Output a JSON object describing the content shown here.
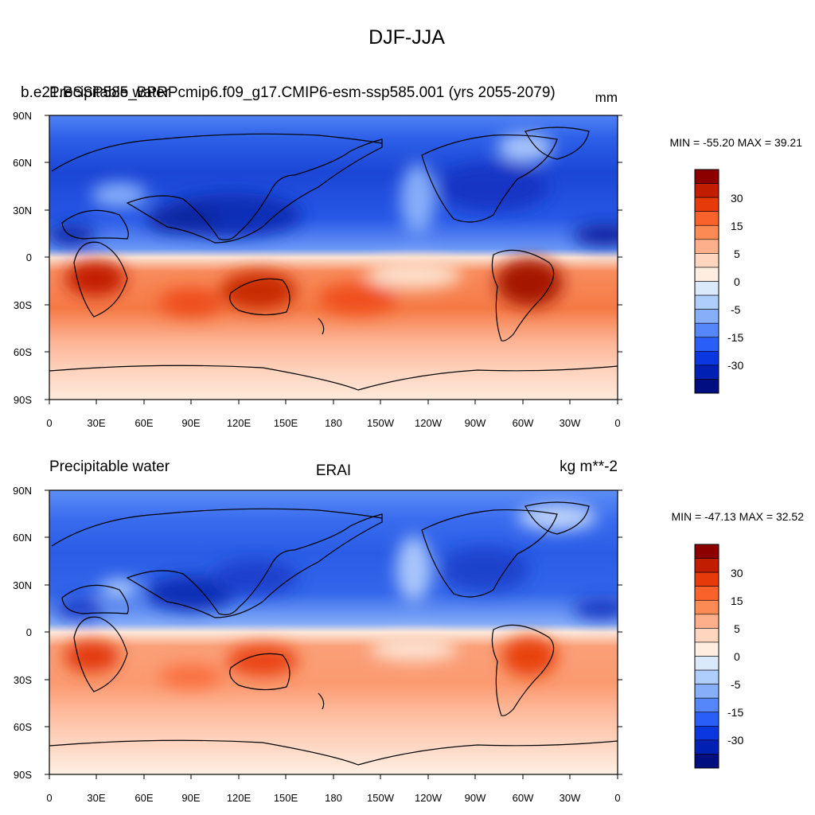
{
  "figure": {
    "title": "DJF-JJA"
  },
  "panels": [
    {
      "id": "model",
      "left_title": "b.e21.BSSP585_BPRPcmip6.f09_g17.CMIP6-esm-ssp585.001 (yrs 2055-2079)",
      "left_title_overlap": "Precipitable water",
      "center_title": "",
      "right_title": "mm",
      "min_max": "MIN = -55.20 MAX =  39.21",
      "lat_ticks": [
        "90N",
        "60N",
        "30N",
        "0",
        "30S",
        "60S",
        "90S"
      ],
      "lon_ticks": [
        "0",
        "30E",
        "60E",
        "90E",
        "120E",
        "150E",
        "180",
        "150W",
        "120W",
        "90W",
        "60W",
        "30W",
        "0"
      ],
      "colorbar_labels": [
        "30",
        "15",
        "5",
        "0",
        "-5",
        "-15",
        "-30"
      ]
    },
    {
      "id": "obs",
      "left_title": "Precipitable water",
      "left_title_overlap": "",
      "center_title": "ERAI",
      "right_title": "kg m**-2",
      "min_max": "MIN = -47.13 MAX =  32.52",
      "lat_ticks": [
        "90N",
        "60N",
        "30N",
        "0",
        "30S",
        "60S",
        "90S"
      ],
      "lon_ticks": [
        "0",
        "30E",
        "60E",
        "90E",
        "120E",
        "150E",
        "180",
        "150W",
        "120W",
        "90W",
        "60W",
        "30W",
        "0"
      ],
      "colorbar_labels": [
        "30",
        "15",
        "5",
        "0",
        "-5",
        "-15",
        "-30"
      ]
    }
  ],
  "colorbar_colors": [
    "#8c0000",
    "#c21d00",
    "#e63a0b",
    "#f9622b",
    "#fb8a55",
    "#fdae8a",
    "#fed6c0",
    "#ffeee0",
    "#dbeafb",
    "#b0cefb",
    "#86aef9",
    "#5687fa",
    "#2a5ef8",
    "#0a37e0",
    "#0020b4",
    "#000e80"
  ]
}
